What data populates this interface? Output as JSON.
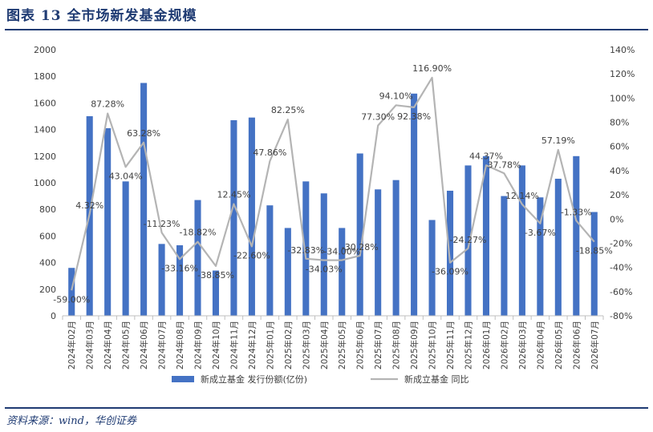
{
  "title": "图表 13   全市场新发基金规模",
  "source": "资料来源：wind，华创证券",
  "chart_data": {
    "type": "bar+line",
    "categories": [
      "2024年02月",
      "2024年03月",
      "2024年04月",
      "2024年05月",
      "2024年06月",
      "2024年07月",
      "2024年08月",
      "2024年09月",
      "2024年10月",
      "2024年11月",
      "2024年12月",
      "2025年01月",
      "2025年02月",
      "2025年03月",
      "2025年04月",
      "2025年05月",
      "2025年06月",
      "2025年07月",
      "2025年08月",
      "2025年09月",
      "2025年10月",
      "2025年11月",
      "2025年12月",
      "2026年01月",
      "2026年02月",
      "2026年03月",
      "2026年04月",
      "2026年05月",
      "2026年06月",
      "2026年07月"
    ],
    "series": [
      {
        "name": "新成立基金  发行份额(亿份)",
        "type": "bar",
        "axis": "left",
        "color": "#4472c4",
        "values": [
          360,
          1500,
          1410,
          1010,
          1750,
          540,
          530,
          870,
          340,
          1470,
          1490,
          830,
          660,
          1010,
          920,
          660,
          1220,
          950,
          1020,
          1670,
          720,
          940,
          1130,
          1200,
          900,
          1130,
          890,
          1030,
          1200,
          780
        ]
      },
      {
        "name": "新成立基金  同比",
        "type": "line",
        "axis": "right",
        "color": "#b4b4b4",
        "values": [
          -59.0,
          4.32,
          87.28,
          43.04,
          63.28,
          -11.23,
          -33.16,
          -18.82,
          -38.85,
          12.45,
          -22.6,
          47.86,
          82.25,
          -32.83,
          -34.03,
          -34.0,
          -30.28,
          77.3,
          94.1,
          92.38,
          116.9,
          -36.09,
          -24.27,
          44.37,
          37.78,
          12.14,
          -3.67,
          57.19,
          -1.33,
          -18.85
        ],
        "labels": [
          "-59.00%",
          "4.32%",
          "87.28%",
          "43.04%",
          "63.28%",
          "-11.23%",
          "-33.16%",
          "-18.82%",
          "-38.85%",
          "12.45%",
          "-22.60%",
          "47.86%",
          "82.25%",
          "-32.83%",
          "-34.03%",
          "-34.00%",
          "-30.28%",
          "77.30%",
          "94.10%",
          "92.38%",
          "116.90%",
          "-36.09%",
          "-24.27%",
          "44.37%",
          "37.78%",
          "12.14%",
          "-3.67%",
          "57.19%",
          "-1.33%",
          "-18.85%"
        ]
      }
    ],
    "left_axis": {
      "min": 0,
      "max": 2000,
      "step": 200,
      "ticks": [
        "0",
        "200",
        "400",
        "600",
        "800",
        "1000",
        "1200",
        "1400",
        "1600",
        "1800",
        "2000"
      ]
    },
    "right_axis": {
      "min": -80,
      "max": 140,
      "step": 20,
      "ticks": [
        "-80%",
        "-60%",
        "-40%",
        "-20%",
        "0%",
        "20%",
        "40%",
        "60%",
        "80%",
        "100%",
        "120%",
        "140%"
      ]
    },
    "grid": false,
    "legend": "bottom"
  }
}
